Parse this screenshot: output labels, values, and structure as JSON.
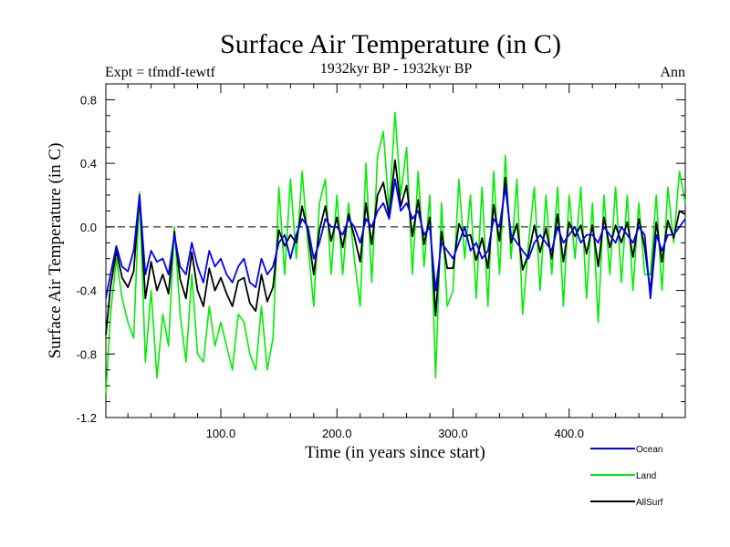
{
  "chart_data": {
    "type": "line",
    "title": "Surface Air Temperature (in C)",
    "subtitle_left": "Expt = tfmdf-tewtf",
    "subtitle_center": "1932kyr BP - 1932kyr BP",
    "subtitle_right": "Ann",
    "xlabel": "Time (in years since start)",
    "ylabel": "Surface Air Temperature (in C)",
    "xlim": [
      1,
      500
    ],
    "ylim": [
      -1.2,
      0.9
    ],
    "xticks": [
      100,
      200,
      300,
      400
    ],
    "xtick_labels": [
      "100.0",
      "200.0",
      "300.0",
      "400.0"
    ],
    "yticks": [
      0.8,
      0.4,
      0.0,
      -0.4,
      -0.8,
      -1.2
    ],
    "ytick_labels": [
      "0.8",
      "0.4",
      "0.0",
      "-0.4",
      "-0.8",
      "-1.2"
    ],
    "reference_line": 0.0,
    "legend_position": "bottom-right",
    "colors": {
      "Ocean": "#0000ff",
      "Land": "#00ee00",
      "AllSurf": "#000000"
    },
    "series": [
      {
        "name": "Ocean",
        "x": [
          1,
          5,
          10,
          15,
          20,
          25,
          30,
          35,
          40,
          45,
          50,
          55,
          60,
          65,
          70,
          75,
          80,
          85,
          90,
          95,
          100,
          105,
          110,
          115,
          120,
          125,
          130,
          135,
          140,
          145,
          150,
          155,
          160,
          165,
          170,
          175,
          180,
          185,
          190,
          195,
          200,
          205,
          210,
          215,
          220,
          225,
          230,
          235,
          240,
          245,
          250,
          255,
          260,
          265,
          270,
          275,
          280,
          285,
          290,
          295,
          300,
          305,
          310,
          315,
          320,
          325,
          330,
          335,
          340,
          345,
          350,
          355,
          360,
          365,
          370,
          375,
          380,
          385,
          390,
          395,
          400,
          405,
          410,
          415,
          420,
          425,
          430,
          435,
          440,
          445,
          450,
          455,
          460,
          465,
          470,
          475,
          480,
          485,
          490,
          495,
          500
        ],
        "values": [
          -0.45,
          -0.3,
          -0.12,
          -0.25,
          -0.28,
          -0.15,
          0.2,
          -0.3,
          -0.15,
          -0.22,
          -0.2,
          -0.3,
          -0.05,
          -0.25,
          -0.3,
          -0.1,
          -0.25,
          -0.35,
          -0.15,
          -0.25,
          -0.2,
          -0.3,
          -0.35,
          -0.25,
          -0.2,
          -0.35,
          -0.38,
          -0.2,
          -0.3,
          -0.25,
          -0.1,
          -0.05,
          -0.2,
          -0.05,
          0.05,
          0.0,
          -0.2,
          -0.1,
          0.05,
          0.0,
          0.0,
          -0.05,
          0.05,
          0.0,
          -0.1,
          0.05,
          0.0,
          0.1,
          0.15,
          0.05,
          0.3,
          0.1,
          0.15,
          0.05,
          0.1,
          -0.05,
          0.0,
          -0.4,
          -0.1,
          -0.15,
          -0.2,
          -0.1,
          0.0,
          -0.15,
          -0.1,
          -0.2,
          -0.15,
          0.05,
          0.0,
          0.25,
          -0.05,
          -0.1,
          -0.15,
          -0.2,
          -0.1,
          -0.05,
          -0.1,
          -0.15,
          0.0,
          -0.1,
          -0.05,
          0.0,
          -0.1,
          -0.05,
          -0.05,
          -0.1,
          0.0,
          -0.05,
          -0.1,
          0.0,
          -0.05,
          -0.1,
          0.0,
          -0.05,
          -0.45,
          -0.05,
          -0.15,
          -0.05,
          -0.05,
          0.0,
          0.05
        ]
      },
      {
        "name": "Land",
        "x": [
          1,
          5,
          10,
          15,
          20,
          25,
          30,
          35,
          40,
          45,
          50,
          55,
          60,
          65,
          70,
          75,
          80,
          85,
          90,
          95,
          100,
          105,
          110,
          115,
          120,
          125,
          130,
          135,
          140,
          145,
          150,
          155,
          160,
          165,
          170,
          175,
          180,
          185,
          190,
          195,
          200,
          205,
          210,
          215,
          220,
          225,
          230,
          235,
          240,
          245,
          250,
          255,
          260,
          265,
          270,
          275,
          280,
          285,
          290,
          295,
          300,
          305,
          310,
          315,
          320,
          325,
          330,
          335,
          340,
          345,
          350,
          355,
          360,
          365,
          370,
          375,
          380,
          385,
          390,
          395,
          400,
          405,
          410,
          415,
          420,
          425,
          430,
          435,
          440,
          445,
          450,
          455,
          460,
          465,
          470,
          475,
          480,
          485,
          490,
          495,
          500
        ],
        "values": [
          -1.05,
          -0.55,
          -0.2,
          -0.45,
          -0.6,
          -0.7,
          0.22,
          -0.85,
          -0.4,
          -0.95,
          -0.55,
          -0.75,
          0.0,
          -0.55,
          -0.85,
          -0.3,
          -0.8,
          -0.85,
          -0.5,
          -0.75,
          -0.6,
          -0.75,
          -0.9,
          -0.55,
          -0.6,
          -0.8,
          -0.9,
          -0.5,
          -0.9,
          -0.7,
          0.25,
          -0.3,
          0.3,
          -0.2,
          0.35,
          -0.1,
          -0.5,
          0.15,
          0.3,
          -0.3,
          0.2,
          -0.3,
          0.15,
          -0.2,
          -0.5,
          0.4,
          -0.35,
          0.45,
          0.6,
          0.1,
          0.72,
          0.2,
          0.5,
          -0.3,
          0.35,
          -0.25,
          0.2,
          -0.95,
          0.15,
          -0.5,
          -0.4,
          0.3,
          -0.2,
          0.2,
          -0.45,
          0.25,
          -0.5,
          0.35,
          -0.3,
          0.45,
          -0.2,
          0.3,
          -0.55,
          -0.1,
          0.25,
          -0.4,
          0.2,
          -0.3,
          0.25,
          -0.5,
          0.2,
          -0.2,
          0.25,
          -0.45,
          0.15,
          -0.6,
          0.2,
          -0.3,
          0.25,
          -0.35,
          0.2,
          -0.4,
          0.15,
          -0.3,
          -0.3,
          0.2,
          -0.4,
          0.25,
          -0.1,
          0.35,
          0.15
        ]
      },
      {
        "name": "AllSurf",
        "x": [
          1,
          5,
          10,
          15,
          20,
          25,
          30,
          35,
          40,
          45,
          50,
          55,
          60,
          65,
          70,
          75,
          80,
          85,
          90,
          95,
          100,
          105,
          110,
          115,
          120,
          125,
          130,
          135,
          140,
          145,
          150,
          155,
          160,
          165,
          170,
          175,
          180,
          185,
          190,
          195,
          200,
          205,
          210,
          215,
          220,
          225,
          230,
          235,
          240,
          245,
          250,
          255,
          260,
          265,
          270,
          275,
          280,
          285,
          290,
          295,
          300,
          305,
          310,
          315,
          320,
          325,
          330,
          335,
          340,
          345,
          350,
          355,
          360,
          365,
          370,
          375,
          380,
          385,
          390,
          395,
          400,
          405,
          410,
          415,
          420,
          425,
          430,
          435,
          440,
          445,
          450,
          455,
          460,
          465,
          470,
          475,
          480,
          485,
          490,
          495,
          500
        ],
        "values": [
          -0.68,
          -0.38,
          -0.15,
          -0.32,
          -0.38,
          -0.28,
          0.2,
          -0.45,
          -0.22,
          -0.4,
          -0.3,
          -0.42,
          -0.03,
          -0.33,
          -0.45,
          -0.16,
          -0.4,
          -0.5,
          -0.26,
          -0.4,
          -0.32,
          -0.42,
          -0.5,
          -0.34,
          -0.32,
          -0.48,
          -0.53,
          -0.3,
          -0.47,
          -0.38,
          -0.02,
          -0.12,
          -0.05,
          -0.1,
          0.13,
          -0.03,
          -0.3,
          -0.02,
          0.13,
          -0.09,
          0.06,
          -0.13,
          0.08,
          -0.06,
          -0.22,
          0.15,
          -0.11,
          0.2,
          0.28,
          0.07,
          0.42,
          0.13,
          0.26,
          -0.06,
          0.17,
          -0.11,
          0.06,
          -0.56,
          -0.03,
          -0.26,
          -0.26,
          0.02,
          -0.06,
          -0.05,
          -0.21,
          -0.07,
          -0.26,
          0.14,
          -0.09,
          0.31,
          -0.1,
          0.02,
          -0.27,
          -0.17,
          0.01,
          -0.16,
          -0.01,
          -0.2,
          0.08,
          -0.22,
          0.03,
          -0.06,
          0.01,
          -0.17,
          0.01,
          -0.25,
          0.06,
          -0.13,
          0.01,
          -0.1,
          0.03,
          -0.19,
          0.05,
          -0.13,
          -0.41,
          0.03,
          -0.22,
          0.04,
          -0.07,
          0.1,
          0.08
        ]
      }
    ]
  }
}
